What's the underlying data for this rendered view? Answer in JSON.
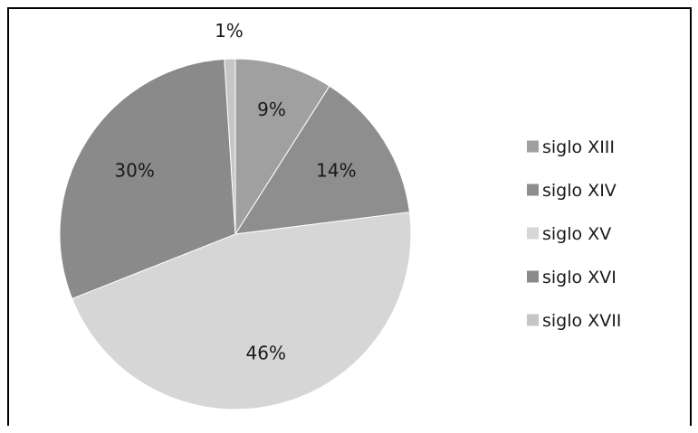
{
  "chart_data": {
    "type": "pie",
    "title": "",
    "legend_position": "right",
    "slices": [
      {
        "label": "siglo XIII",
        "value": 9,
        "value_label": "9%",
        "color": "#a0a0a0"
      },
      {
        "label": "siglo XIV",
        "value": 14,
        "value_label": "14%",
        "color": "#8e8e8e"
      },
      {
        "label": "siglo XV",
        "value": 46,
        "value_label": "46%",
        "color": "#d6d6d6"
      },
      {
        "label": "siglo XVI",
        "value": 30,
        "value_label": "30%",
        "color": "#8a8a8a"
      },
      {
        "label": "siglo XVII",
        "value": 1,
        "value_label": "1%",
        "color": "#c6c6c6"
      }
    ]
  }
}
